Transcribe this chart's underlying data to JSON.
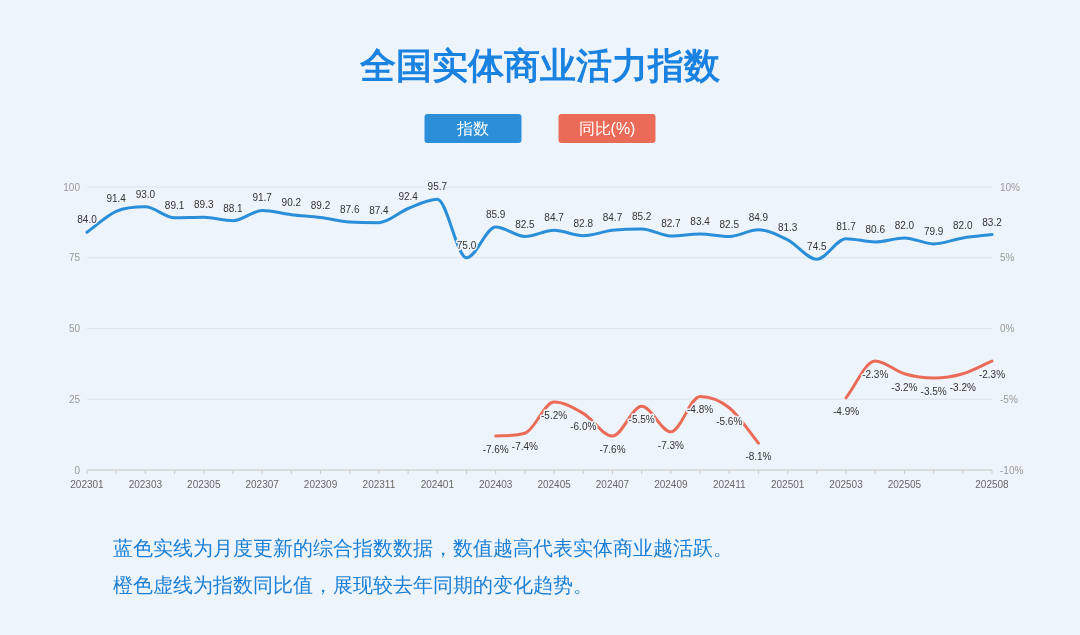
{
  "chart_data": {
    "type": "line",
    "title": "全国实体商业活力指数",
    "categories": [
      "202301",
      null,
      "202303",
      null,
      "202305",
      null,
      "202307",
      null,
      "202309",
      null,
      "202311",
      null,
      "202401",
      null,
      "202403",
      null,
      "202405",
      null,
      "202407",
      null,
      "202409",
      null,
      "202411",
      null,
      "202501",
      null,
      "202503",
      null,
      "202505",
      null,
      null,
      "202508"
    ],
    "series": [
      {
        "name": "指数",
        "color": "#2a8fd8",
        "values": [
          84.0,
          91.4,
          93.0,
          89.1,
          89.3,
          88.1,
          91.7,
          90.2,
          89.2,
          87.6,
          87.4,
          92.4,
          95.7,
          75.0,
          85.9,
          82.5,
          84.7,
          82.8,
          84.7,
          85.2,
          82.7,
          83.4,
          82.5,
          84.9,
          81.3,
          74.5,
          81.7,
          80.6,
          82.0,
          79.9,
          82.0,
          83.2
        ],
        "value_labels": [
          "84.0",
          "91.4",
          "93.0",
          "89.1",
          "89.3",
          "88.1",
          "91.7",
          "90.2",
          "89.2",
          "87.6",
          "87.4",
          "92.4",
          "95.7",
          "75.0",
          "85.9",
          "82.5",
          "84.7",
          "82.8",
          "84.7",
          "85.2",
          "82.7",
          "83.4",
          "82.5",
          "84.9",
          "81.3",
          "74.5",
          "81.7",
          "80.6",
          "82.0",
          "79.9",
          "82.0",
          "83.2"
        ]
      },
      {
        "name": "同比(%)",
        "color": "#ea6c58",
        "axis": "y2",
        "values": [
          null,
          null,
          null,
          null,
          null,
          null,
          null,
          null,
          null,
          null,
          null,
          null,
          null,
          null,
          -7.6,
          -7.4,
          -5.2,
          -6.0,
          -7.6,
          -5.5,
          -7.3,
          -4.8,
          -5.6,
          -8.1,
          null,
          null,
          -4.9,
          -2.3,
          -3.2,
          -3.5,
          -3.2,
          -2.3
        ],
        "value_labels": [
          null,
          null,
          null,
          null,
          null,
          null,
          null,
          null,
          null,
          null,
          null,
          null,
          null,
          null,
          "-7.6%",
          "-7.4%",
          "-5.2%",
          "-6.0%",
          "-7.6%",
          "-5.5%",
          "-7.3%",
          "-4.8%",
          "-5.6%",
          "-8.1%",
          null,
          null,
          "-4.9%",
          "-2.3%",
          "-3.2%",
          "-3.5%",
          "-3.2%",
          "-2.3%"
        ]
      }
    ],
    "ylim": [
      0,
      100
    ],
    "yticks": [
      0,
      25,
      50,
      75,
      100
    ],
    "y2lim": [
      -10,
      10
    ],
    "y2ticks": [
      {
        "value": -10,
        "label": "-10%"
      },
      {
        "value": -5,
        "label": "-5%"
      },
      {
        "value": 0,
        "label": "0%"
      },
      {
        "value": 5,
        "label": "5%"
      },
      {
        "value": 10,
        "label": "10%"
      }
    ],
    "grid": "y",
    "legend": "top",
    "annotations": [
      "蓝色实线为月度更新的综合指数数据，数值越高代表实体商业越活跃。",
      "橙色虚线为指数同比值，展现较去年同期的变化趋势。"
    ]
  }
}
